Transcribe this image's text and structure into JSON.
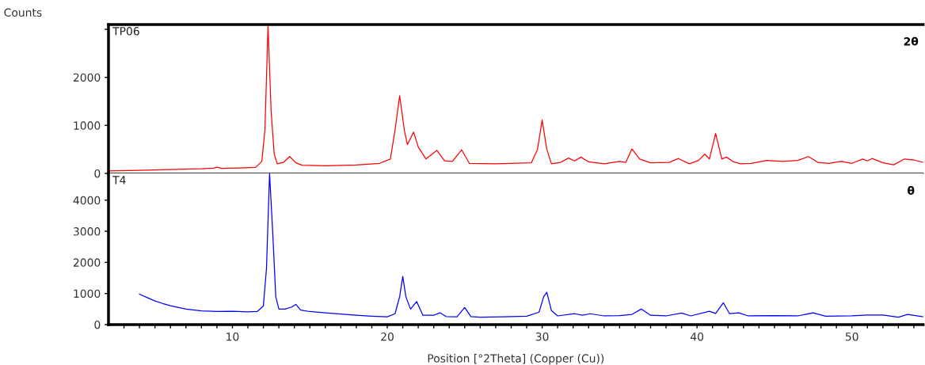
{
  "chart_data": [
    {
      "type": "line",
      "ylabel": "Counts",
      "xlim": [
        2,
        54.6
      ],
      "ylim": [
        0,
        3100
      ],
      "yticks": [
        0,
        1000,
        2000,
        {
          "value": 3000,
          "label": null
        }
      ],
      "tick_labels": "y",
      "grid": false,
      "legend": false,
      "annotations": [
        "2θ"
      ],
      "series": [
        {
          "name": "TP06",
          "color": "#ff0000",
          "x": [
            2,
            4,
            6,
            8,
            8.8,
            9.0,
            9.3,
            10.5,
            11.5,
            11.9,
            12.1,
            12.3,
            12.5,
            12.7,
            12.9,
            13.3,
            13.7,
            14.1,
            14.5,
            16,
            18,
            19.5,
            20.2,
            20.5,
            20.8,
            21.1,
            21.3,
            21.7,
            22.0,
            22.5,
            23.2,
            23.7,
            24.2,
            24.8,
            25.3,
            27,
            29.3,
            29.7,
            30.0,
            30.3,
            30.6,
            31.2,
            31.7,
            32.1,
            32.5,
            33.0,
            34.0,
            35.0,
            35.4,
            35.8,
            36.3,
            37.0,
            38.2,
            38.8,
            39.5,
            40.1,
            40.5,
            40.8,
            41.2,
            41.6,
            41.9,
            42.3,
            42.8,
            43.5,
            44.5,
            45.5,
            46.5,
            47.2,
            47.8,
            48.5,
            49.3,
            50.0,
            50.7,
            51.0,
            51.3,
            52.0,
            52.7,
            53.4,
            54.0,
            54.6
          ],
          "values": [
            50,
            65,
            80,
            95,
            110,
            130,
            105,
            115,
            125,
            250,
            900,
            3080,
            1300,
            400,
            200,
            230,
            350,
            220,
            170,
            160,
            175,
            210,
            300,
            900,
            1620,
            900,
            600,
            860,
            550,
            300,
            480,
            260,
            250,
            490,
            210,
            200,
            220,
            500,
            1110,
            500,
            200,
            230,
            320,
            260,
            340,
            240,
            200,
            250,
            230,
            510,
            300,
            220,
            230,
            310,
            200,
            270,
            400,
            300,
            830,
            300,
            340,
            250,
            200,
            210,
            270,
            250,
            270,
            350,
            230,
            210,
            250,
            210,
            300,
            260,
            310,
            220,
            180,
            300,
            280,
            230
          ]
        }
      ]
    },
    {
      "type": "line",
      "xlabel": "Position [°2Theta] (Copper (Cu))",
      "xlim": [
        2,
        54.6
      ],
      "ylim": [
        0,
        4860
      ],
      "yticks": [
        0,
        1000,
        2000,
        3000,
        4000
      ],
      "xticks": [
        {
          "value": 3,
          "label": null
        },
        {
          "value": 4,
          "label": null
        },
        {
          "value": 5,
          "label": null
        },
        {
          "value": 6,
          "label": null
        },
        {
          "value": 7,
          "label": null
        },
        {
          "value": 8,
          "label": null
        },
        {
          "value": 9,
          "label": null
        },
        10,
        {
          "value": 11,
          "label": null
        },
        {
          "value": 12,
          "label": null
        },
        {
          "value": 13,
          "label": null
        },
        {
          "value": 14,
          "label": null
        },
        {
          "value": 15,
          "label": null
        },
        {
          "value": 16,
          "label": null
        },
        {
          "value": 17,
          "label": null
        },
        {
          "value": 18,
          "label": null
        },
        {
          "value": 19,
          "label": null
        },
        20,
        {
          "value": 21,
          "label": null
        },
        {
          "value": 22,
          "label": null
        },
        {
          "value": 23,
          "label": null
        },
        {
          "value": 24,
          "label": null
        },
        {
          "value": 25,
          "label": null
        },
        {
          "value": 26,
          "label": null
        },
        {
          "value": 27,
          "label": null
        },
        {
          "value": 28,
          "label": null
        },
        {
          "value": 29,
          "label": null
        },
        30,
        {
          "value": 31,
          "label": null
        },
        {
          "value": 32,
          "label": null
        },
        {
          "value": 33,
          "label": null
        },
        {
          "value": 34,
          "label": null
        },
        {
          "value": 35,
          "label": null
        },
        {
          "value": 36,
          "label": null
        },
        {
          "value": 37,
          "label": null
        },
        {
          "value": 38,
          "label": null
        },
        {
          "value": 39,
          "label": null
        },
        40,
        {
          "value": 41,
          "label": null
        },
        {
          "value": 42,
          "label": null
        },
        {
          "value": 43,
          "label": null
        },
        {
          "value": 44,
          "label": null
        },
        {
          "value": 45,
          "label": null
        },
        {
          "value": 46,
          "label": null
        },
        {
          "value": 47,
          "label": null
        },
        {
          "value": 48,
          "label": null
        },
        {
          "value": 49,
          "label": null
        },
        50,
        {
          "value": 51,
          "label": null
        },
        {
          "value": 52,
          "label": null
        },
        {
          "value": 53,
          "label": null
        },
        {
          "value": 54,
          "label": null
        }
      ],
      "grid": false,
      "legend": false,
      "annotations": [
        "θ"
      ],
      "series": [
        {
          "name": "T4",
          "color": "#0000ff",
          "x": [
            4.0,
            4.5,
            5.0,
            5.5,
            6.0,
            7.0,
            8.0,
            9.0,
            10.0,
            11.0,
            11.6,
            12.0,
            12.2,
            12.4,
            12.6,
            12.8,
            13.0,
            13.4,
            13.8,
            14.1,
            14.4,
            15.0,
            16.0,
            17.0,
            18.0,
            19.0,
            20.0,
            20.5,
            20.8,
            21.0,
            21.2,
            21.5,
            21.9,
            22.3,
            23.0,
            23.4,
            23.8,
            24.5,
            25.0,
            25.4,
            26.0,
            27.5,
            29.0,
            29.8,
            30.1,
            30.3,
            30.6,
            31.0,
            32.1,
            32.6,
            33.1,
            34.0,
            35.0,
            35.8,
            36.4,
            37.0,
            38.0,
            39.0,
            39.6,
            40.8,
            41.2,
            41.7,
            42.1,
            42.7,
            43.3,
            45.0,
            46.5,
            47.5,
            48.3,
            50.0,
            51.0,
            52.0,
            53.0,
            53.6,
            54.6
          ],
          "values": [
            980,
            870,
            760,
            680,
            610,
            500,
            440,
            420,
            430,
            410,
            420,
            600,
            1800,
            4850,
            3000,
            900,
            500,
            500,
            560,
            650,
            470,
            420,
            380,
            340,
            300,
            270,
            250,
            350,
            900,
            1550,
            900,
            500,
            740,
            300,
            300,
            380,
            260,
            250,
            550,
            260,
            240,
            250,
            270,
            400,
            900,
            1040,
            450,
            280,
            350,
            300,
            350,
            280,
            290,
            330,
            500,
            300,
            280,
            370,
            280,
            430,
            360,
            700,
            350,
            380,
            280,
            290,
            280,
            380,
            270,
            280,
            310,
            310,
            240,
            330,
            250
          ]
        }
      ]
    }
  ]
}
